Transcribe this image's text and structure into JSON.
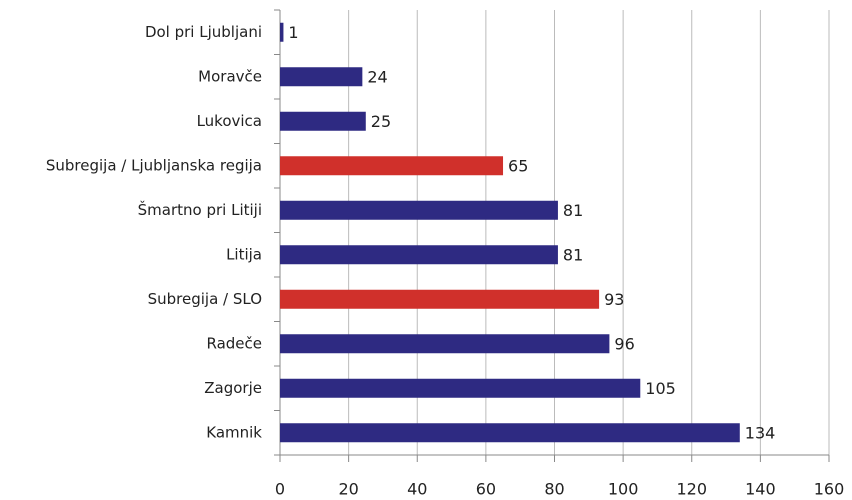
{
  "chart_data": {
    "type": "barh",
    "categories": [
      "Dol pri Ljubljani",
      "Moravče",
      "Lukovica",
      "Subregija / Ljubljanska regija",
      "Šmartno pri Litiji",
      "Litija",
      "Subregija / SLO",
      "Radeče",
      "Zagorje",
      "Kamnik"
    ],
    "values": [
      1,
      24,
      25,
      65,
      81,
      81,
      93,
      96,
      105,
      134
    ],
    "colors": [
      "#2e2a82",
      "#2e2a82",
      "#2e2a82",
      "#d0302b",
      "#2e2a82",
      "#2e2a82",
      "#d0302b",
      "#2e2a82",
      "#2e2a82",
      "#2e2a82"
    ],
    "xlim": [
      0,
      160
    ],
    "xticks": [
      0,
      20,
      40,
      60,
      80,
      100,
      120,
      140,
      160
    ],
    "grid": true
  }
}
